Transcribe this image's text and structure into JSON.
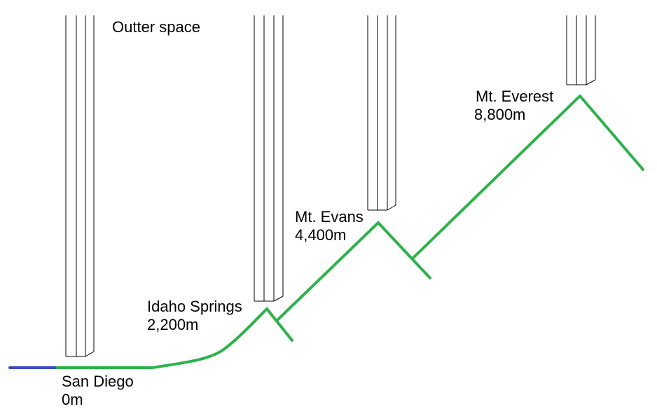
{
  "colors": {
    "sea": "#3b4cc0",
    "terrain": "#2db24a",
    "column_outline": "#000000",
    "background": "#ffffff"
  },
  "space_label": "Outter space",
  "locations": [
    {
      "name": "San Diego",
      "altitude": "0m"
    },
    {
      "name": "Idaho Springs",
      "altitude": "2,200m"
    },
    {
      "name": "Mt. Evans",
      "altitude": "4,400m"
    },
    {
      "name": "Mt. Everest",
      "altitude": "8,800m"
    }
  ]
}
